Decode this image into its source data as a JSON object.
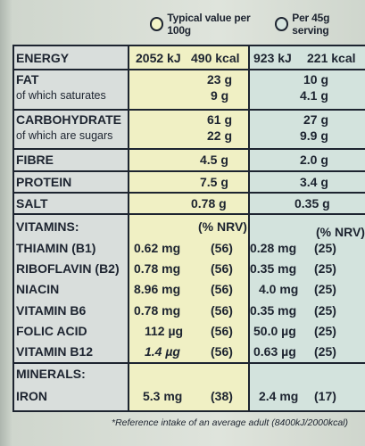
{
  "legend": {
    "per100": "Typical value per 100g",
    "per45": "Per 45g serving"
  },
  "rows": {
    "energy": {
      "label": "ENERGY",
      "kj100": "2052 kJ",
      "kcal100": "490 kcal",
      "kj45": "923 kJ",
      "kcal45": "221 kcal"
    },
    "fat": {
      "label": "FAT",
      "v100": "23 g",
      "v45": "10 g"
    },
    "saturates": {
      "label": "of which saturates",
      "v100": "9 g",
      "v45": "4.1 g"
    },
    "carb": {
      "label": "CARBOHYDRATE",
      "v100": "61 g",
      "v45": "27 g"
    },
    "sugars": {
      "label": "of which are sugars",
      "v100": "22 g",
      "v45": "9.9 g"
    },
    "fibre": {
      "label": "FIBRE",
      "v100": "4.5 g",
      "v45": "2.0 g"
    },
    "protein": {
      "label": "PROTEIN",
      "v100": "7.5 g",
      "v45": "3.4 g"
    },
    "salt": {
      "label": "SALT",
      "v100": "0.78 g",
      "v45": "0.35 g"
    }
  },
  "vitamins": {
    "header": "VITAMINS:",
    "nrv100": "(% NRV)",
    "nrv45": "(% NRV)",
    "items": [
      {
        "label": "THIAMIN (B1)",
        "v100": "0.62 mg",
        "n100": "(56)",
        "v45": "0.28 mg",
        "n45": "(25)"
      },
      {
        "label": "RIBOFLAVIN (B2)",
        "v100": "0.78 mg",
        "n100": "(56)",
        "v45": "0.35 mg",
        "n45": "(25)"
      },
      {
        "label": "NIACIN",
        "v100": "8.96 mg",
        "n100": "(56)",
        "v45": "4.0 mg",
        "n45": "(25)"
      },
      {
        "label": "VITAMIN B6",
        "v100": "0.78 mg",
        "n100": "(56)",
        "v45": "0.35 mg",
        "n45": "(25)"
      },
      {
        "label": "FOLIC ACID",
        "v100": "112 µg",
        "n100": "(56)",
        "v45": "50.0 µg",
        "n45": "(25)"
      },
      {
        "label": "VITAMIN B12",
        "v100": "1.4 µg",
        "n100": "(56)",
        "v45": "0.63 µg",
        "n45": "(25)"
      }
    ]
  },
  "minerals": {
    "header": "MINERALS:",
    "iron": {
      "label": "IRON",
      "v100": "5.3 mg",
      "n100": "(38)",
      "v45": "2.4 mg",
      "n45": "(17)"
    }
  },
  "footnote": "*Reference intake of an average adult (8400kJ/2000kcal)"
}
